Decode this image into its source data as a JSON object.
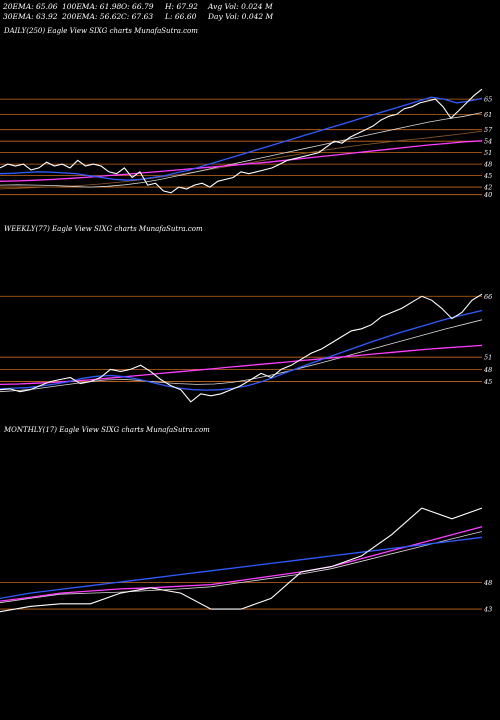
{
  "header": {
    "ema20": "20EMA: 65.06",
    "ema100": "100EMA: 61.98",
    "open": "O: 66.79",
    "high": "H: 67.92",
    "avgvol": "Avg Vol: 0.024  M",
    "ema30": "30EMA: 63.92",
    "ema200": "200EMA: 56.62",
    "close": "C: 67.63",
    "low": "L: 66.60",
    "dayvol": "Day Vol: 0.042  M"
  },
  "panels": {
    "daily": "DAILY(250) Eagle   View  SIXG charts MunafaSutra.com",
    "weekly": "WEEKLY(77) Eagle   View  SIXG charts MunafaSutra.com",
    "monthly": "MONTHLY(17) Eagle   View  SIXG charts MunafaSutra.com"
  },
  "colors": {
    "background": "#000000",
    "level": "#c86a1e",
    "price": "#ffffff",
    "ema_fast": "#2f5bff",
    "ema_slow": "#ff3cff",
    "ema_mid": "#d8d8d8",
    "ema_brown": "#8a5a2a"
  },
  "chart_data": [
    {
      "type": "line",
      "title": "DAILY(250) Eagle   View  SIXG charts MunafaSutra.com",
      "ylim": [
        36,
        70
      ],
      "levels": [
        65,
        61,
        57,
        54,
        51,
        48,
        45,
        42,
        40
      ],
      "level_labels": [
        "65",
        "61",
        "57",
        "54",
        "51",
        "48",
        "45",
        "42",
        "40"
      ],
      "series": [
        {
          "values": [
            47,
            48,
            47.5,
            48,
            46.5,
            47,
            48.5,
            47.5,
            48,
            47,
            49,
            47.5,
            48,
            47.5,
            46,
            45.5,
            47,
            44.5,
            46,
            42.5,
            43,
            41,
            40.5,
            42,
            41.5,
            42.5,
            43,
            42,
            43.5,
            44,
            44.5,
            46,
            45.5,
            46,
            46.5,
            47,
            48,
            49,
            49.5,
            50,
            50.5,
            51,
            52.5,
            54,
            53.5,
            55,
            56,
            57,
            58,
            59.5,
            60.5,
            61,
            62.5,
            63,
            64,
            64.5,
            65,
            63,
            60,
            62,
            64,
            66,
            67.6
          ]
        },
        {
          "values": [
            45.5,
            45.6,
            45.8,
            46,
            45.9,
            45.7,
            45.5,
            45,
            44.5,
            44,
            43.8,
            44,
            44.5,
            45,
            45.8,
            46.5,
            47.5,
            48.5,
            49.5,
            50.5,
            51.5,
            52.5,
            53.5,
            54.5,
            55.5,
            56.5,
            57.5,
            58.5,
            59.5,
            60.5,
            61.5,
            62.5,
            63.5,
            64.5,
            65.5,
            65,
            64,
            64.5,
            65.2
          ]
        },
        {
          "values": [
            43.5,
            43.6,
            43.8,
            44,
            44.3,
            44.6,
            45,
            45.3,
            45.7,
            46.1,
            46.5,
            46.9,
            47.3,
            47.7,
            48.1,
            48.5,
            49,
            49.5,
            50,
            50.5,
            51,
            51.5,
            52,
            52.5,
            53,
            53.4,
            53.8,
            54.1
          ]
        },
        {
          "values": [
            42.5,
            42.6,
            42.5,
            42.4,
            42.2,
            42,
            42.2,
            42.6,
            43.2,
            44,
            45,
            46,
            47,
            48,
            49,
            50,
            51,
            52,
            53,
            54,
            55,
            56,
            57,
            58,
            59,
            59.8,
            60.5,
            61.5
          ]
        },
        {
          "values": [
            41.5,
            41.7,
            41.9,
            42.1,
            42.4,
            42.8,
            43.3,
            43.9,
            44.6,
            45.4,
            46.2,
            47.1,
            48,
            48.9,
            49.8,
            50.7,
            51.5,
            52.3,
            53,
            53.6,
            54.2,
            54.7,
            55.3,
            55.9,
            56.6
          ]
        }
      ]
    },
    {
      "type": "line",
      "title": "WEEKLY(77) Eagle   View  SIXG charts MunafaSutra.com",
      "ylim": [
        38,
        70
      ],
      "levels": [
        66,
        51,
        48,
        45
      ],
      "level_labels": [
        "66",
        "51",
        "48",
        "45"
      ],
      "series": [
        {
          "values": [
            43,
            43.2,
            42.5,
            43,
            44,
            45,
            45.5,
            46,
            44.5,
            45,
            46,
            48,
            47.5,
            48,
            49,
            47.5,
            45.5,
            44,
            43,
            40,
            42,
            41.5,
            42,
            43,
            44,
            45.5,
            47,
            46,
            48,
            49,
            50.5,
            52,
            53,
            54.5,
            56,
            57.5,
            58,
            59,
            61,
            62,
            63,
            64.5,
            66,
            65,
            63,
            60.5,
            62,
            65,
            66.5
          ]
        },
        {
          "values": [
            43.2,
            43.4,
            43.5,
            43.9,
            44.4,
            45,
            45.8,
            46.3,
            46.5,
            46.2,
            45.6,
            44.8,
            44,
            43.4,
            43,
            42.9,
            43,
            43.4,
            44,
            45,
            46.2,
            47.5,
            48.8,
            50,
            51.2,
            52.4,
            53.6,
            54.8,
            55.9,
            57,
            58,
            59,
            60,
            60.9,
            61.7,
            62.5
          ]
        },
        {
          "values": [
            44.3,
            44.4,
            44.6,
            44.8,
            45.1,
            45.4,
            45.8,
            46.2,
            46.6,
            47,
            47.4,
            47.8,
            48.2,
            48.6,
            49,
            49.4,
            49.8,
            50.2,
            50.6,
            51,
            51.4,
            51.8,
            52.2,
            52.6,
            53,
            53.3,
            53.6,
            53.9
          ]
        },
        {
          "values": [
            42.5,
            42.8,
            43.2,
            43.8,
            44.4,
            45,
            45.4,
            45.5,
            45.2,
            44.8,
            44.5,
            44.3,
            44.4,
            44.8,
            45.5,
            46.4,
            47.4,
            48.5,
            49.6,
            50.8,
            52,
            53.2,
            54.4,
            55.6,
            56.8,
            58,
            59.1,
            60.2
          ]
        }
      ]
    },
    {
      "type": "line",
      "title": "MONTHLY(17) Eagle   View  SIXG charts MunafaSutra.com",
      "ylim": [
        40,
        72
      ],
      "levels": [
        48,
        43
      ],
      "level_labels": [
        "48",
        "43"
      ],
      "series": [
        {
          "values": [
            42.5,
            43.5,
            44,
            44,
            46,
            47,
            46,
            43,
            43,
            45,
            50,
            51,
            53,
            57,
            62,
            60,
            62
          ]
        },
        {
          "values": [
            45,
            46,
            46.7,
            47.4,
            48.1,
            48.8,
            49.5,
            50.2,
            50.9,
            51.6,
            52.3,
            53,
            53.7,
            54.4,
            55.1,
            55.8,
            56.5
          ]
        },
        {
          "values": [
            44.5,
            45.2,
            46,
            46.4,
            46.8,
            47,
            47.3,
            47.6,
            48.4,
            49.2,
            50,
            51,
            52.5,
            54,
            55.5,
            57,
            58.5
          ]
        },
        {
          "values": [
            44.2,
            45,
            45.8,
            46,
            46.2,
            46.5,
            46.8,
            47.2,
            48,
            48.8,
            49.6,
            50.6,
            52,
            53.4,
            54.8,
            56.2,
            57.6
          ]
        }
      ]
    }
  ]
}
